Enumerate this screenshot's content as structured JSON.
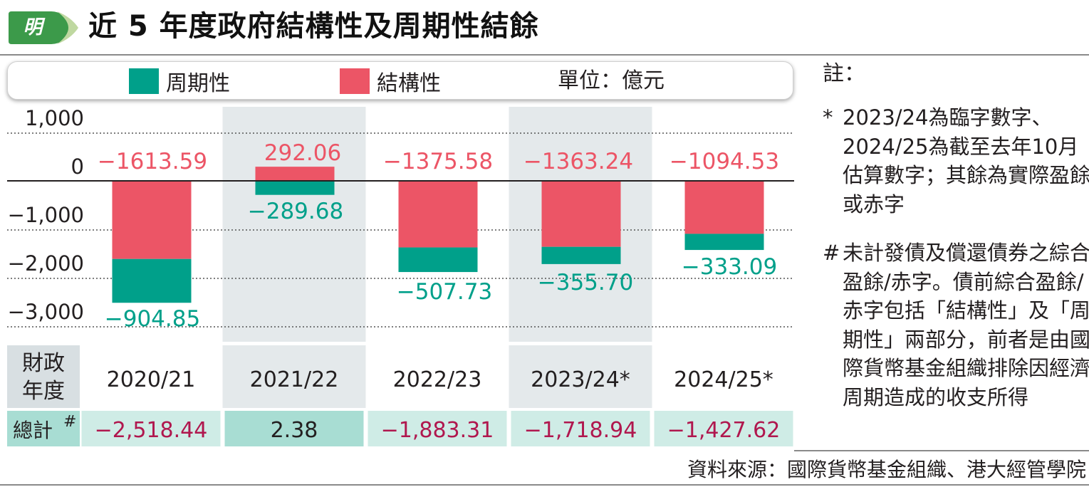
{
  "logo": {
    "char": "明",
    "color": "#3c9a4a"
  },
  "title": "近 5 年度政府結構性及周期性結餘",
  "legend": {
    "items": [
      {
        "label": "周期性",
        "color": "#00a08a"
      },
      {
        "label": "結構性",
        "color": "#ec5566"
      }
    ],
    "unit": "單位：億元"
  },
  "chart_data": {
    "type": "bar",
    "stacked": true,
    "categories": [
      "2020/21",
      "2021/22",
      "2022/23",
      "2023/24*",
      "2024/25*"
    ],
    "series": [
      {
        "name": "結構性",
        "color": "#ec5566",
        "values": [
          -1613.59,
          292.06,
          -1375.58,
          -1363.24,
          -1094.53
        ],
        "labels": [
          "−1613.59",
          "292.06",
          "−1375.58",
          "−1363.24",
          "−1094.53"
        ]
      },
      {
        "name": "周期性",
        "color": "#00a08a",
        "values": [
          -904.85,
          -289.68,
          -507.73,
          -355.7,
          -333.09
        ],
        "labels": [
          "−904.85",
          "−289.68",
          "−507.73",
          "−355.70",
          "−333.09"
        ]
      }
    ],
    "y_ticks": [
      1000,
      0,
      -1000,
      -2000,
      -3000
    ],
    "y_tick_labels": [
      "1,000",
      "0",
      "−1,000",
      "−2,000",
      "−3,000"
    ],
    "ylim": [
      -3000,
      1000
    ],
    "grid": "dotted",
    "row_header": "財政年度",
    "total_header": "總計",
    "total_mark": "#",
    "totals": [
      "−2,518.44",
      "2.38",
      "−1,883.31",
      "−1,718.94",
      "−1,427.62"
    ],
    "totals_color": {
      "negative": "#b0174e",
      "positive": "#231f20"
    }
  },
  "notes": {
    "heading": "註：",
    "items": [
      {
        "mark": "*",
        "text": "2023/24為臨字數字、2024/25為截至去年10月估算數字；其餘為實際盈餘或赤字"
      },
      {
        "mark": "#",
        "text": "未計發債及償還債券之綜合盈餘/赤字。債前綜合盈餘/赤字包括「結構性」及「周期性」兩部分，前者是由國際貨幣基金組織排除因經濟周期造成的收支所得"
      }
    ]
  },
  "source": "資料來源：國際貨幣基金組織、港大經管學院"
}
